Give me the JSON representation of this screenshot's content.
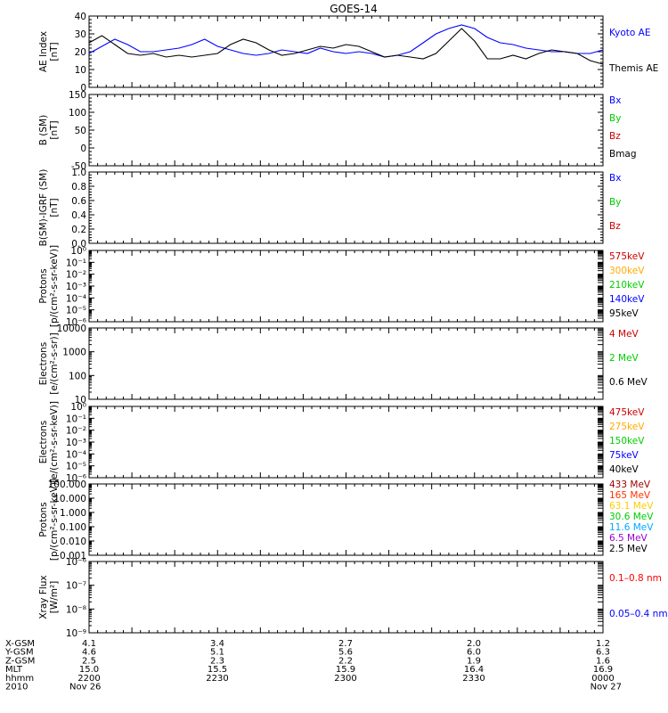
{
  "title": "GOES-14",
  "chart_data": [
    {
      "type": "line",
      "ylabel": "AE Index [nT]",
      "ylim": [
        0,
        40
      ],
      "yticks": [
        "0",
        "10",
        "20",
        "30",
        "40"
      ],
      "legend": [
        {
          "label": "Kyoto AE",
          "color": "#0000ff"
        },
        {
          "label": "Themis AE",
          "color": "#000000"
        }
      ],
      "x_hours": [
        22.0,
        22.05,
        22.1,
        22.15,
        22.2,
        22.25,
        22.3,
        22.35,
        22.4,
        22.45,
        22.5,
        22.55,
        22.6,
        22.65,
        22.7,
        22.75,
        22.8,
        22.85,
        22.9,
        22.95,
        23.0,
        23.05,
        23.1,
        23.15,
        23.2,
        23.25,
        23.3,
        23.35,
        23.4,
        23.45,
        23.5,
        23.55,
        23.6,
        23.65,
        23.7,
        23.75,
        23.8,
        23.85,
        23.9,
        23.95,
        24.0
      ],
      "series": [
        {
          "name": "Kyoto AE",
          "color": "#0000ff",
          "values": [
            19,
            23,
            27,
            24,
            20,
            20,
            21,
            22,
            24,
            27,
            23,
            21,
            19,
            18,
            19,
            21,
            20,
            19,
            22,
            20,
            19,
            20,
            19,
            17,
            18,
            20,
            25,
            30,
            33,
            35,
            33,
            28,
            25,
            24,
            22,
            21,
            20,
            20,
            19,
            19,
            21
          ]
        },
        {
          "name": "Themis AE",
          "color": "#000000",
          "values": [
            25,
            29,
            24,
            19,
            18,
            19,
            17,
            18,
            17,
            18,
            19,
            24,
            27,
            25,
            21,
            18,
            19,
            21,
            23,
            22,
            24,
            23,
            20,
            17,
            18,
            17,
            16,
            19,
            26,
            33,
            26,
            16,
            16,
            18,
            16,
            19,
            21,
            20,
            19,
            15,
            13
          ]
        }
      ]
    },
    {
      "type": "line",
      "ylabel": "B (SM) [nT]",
      "ylim": [
        -50,
        150
      ],
      "yticks": [
        "-50",
        "0",
        "50",
        "100",
        "150"
      ],
      "legend": [
        {
          "label": "Bx",
          "color": "#0000ff"
        },
        {
          "label": "By",
          "color": "#00cc00"
        },
        {
          "label": "Bz",
          "color": "#cc0000"
        },
        {
          "label": "Bmag",
          "color": "#000000"
        }
      ],
      "series": []
    },
    {
      "type": "line",
      "ylabel": "B(SM)-IGRF (SM) [nT]",
      "ylim": [
        0,
        1
      ],
      "yticks": [
        "0.0",
        "0.2",
        "0.4",
        "0.6",
        "0.8",
        "1.0"
      ],
      "legend": [
        {
          "label": "Bx",
          "color": "#0000ff"
        },
        {
          "label": "By",
          "color": "#00cc00"
        },
        {
          "label": "Bz",
          "color": "#cc0000"
        }
      ],
      "series": []
    },
    {
      "type": "line",
      "ylabel": "Protons [p/(cm²-s-sr-keV)]",
      "scale": "log",
      "ylim": [
        1e-06,
        1
      ],
      "yticks": [
        "10⁻⁶",
        "10⁻⁵",
        "10⁻⁴",
        "10⁻³",
        "10⁻²",
        "10⁻¹",
        "10⁰"
      ],
      "legend": [
        {
          "label": "575keV",
          "color": "#cc0000"
        },
        {
          "label": "300keV",
          "color": "#ffaa00"
        },
        {
          "label": "210keV",
          "color": "#00cc00"
        },
        {
          "label": "140keV",
          "color": "#0000ff"
        },
        {
          "label": "95keV",
          "color": "#000000"
        }
      ],
      "series": []
    },
    {
      "type": "line",
      "ylabel": "Electrons [e/(cm²-s-sr)]",
      "scale": "log",
      "ylim": [
        10,
        10000
      ],
      "yticks": [
        "10",
        "100",
        "1000",
        "10000"
      ],
      "legend": [
        {
          "label": "4 MeV",
          "color": "#cc0000"
        },
        {
          "label": "2 MeV",
          "color": "#00cc00"
        },
        {
          "label": "0.6 MeV",
          "color": "#000000"
        }
      ],
      "series": []
    },
    {
      "type": "line",
      "ylabel": "Electrons [e/(cm²-s-sr-keV)]",
      "scale": "log",
      "ylim": [
        1e-06,
        1
      ],
      "yticks": [
        "10⁻⁶",
        "10⁻⁵",
        "10⁻⁴",
        "10⁻³",
        "10⁻²",
        "10⁻¹",
        "10⁰"
      ],
      "legend": [
        {
          "label": "475keV",
          "color": "#cc0000"
        },
        {
          "label": "275keV",
          "color": "#ffaa00"
        },
        {
          "label": "150keV",
          "color": "#00cc00"
        },
        {
          "label": "75keV",
          "color": "#0000ff"
        },
        {
          "label": "40keV",
          "color": "#000000"
        }
      ],
      "series": []
    },
    {
      "type": "line",
      "ylabel": "Protons [p/(cm²-s-sr-keV)]",
      "scale": "log",
      "ylim": [
        0.001,
        100
      ],
      "yticks": [
        "0.001",
        "0.010",
        "0.100",
        "1.000",
        "10.000",
        "100.000"
      ],
      "legend": [
        {
          "label": "433 MeV",
          "color": "#990000"
        },
        {
          "label": "165 MeV",
          "color": "#ff3300"
        },
        {
          "label": "63.1 MeV",
          "color": "#ffcc00"
        },
        {
          "label": "30.6 MeV",
          "color": "#00cc00"
        },
        {
          "label": "11.6 MeV",
          "color": "#00aaff"
        },
        {
          "label": "6.5 MeV",
          "color": "#9900cc"
        },
        {
          "label": "2.5 MeV",
          "color": "#000000"
        }
      ],
      "series": []
    },
    {
      "type": "line",
      "ylabel": "Xray Flux [W/m²]",
      "scale": "log",
      "ylim": [
        1e-09,
        1e-06
      ],
      "yticks": [
        "10⁻⁹",
        "10⁻⁸",
        "10⁻⁷",
        "10⁻⁶"
      ],
      "legend": [
        {
          "label": "0.1–0.8 nm",
          "color": "#ff0000"
        },
        {
          "label": "0.05–0.4 nm",
          "color": "#0000ff"
        }
      ],
      "series": []
    }
  ],
  "ephemeris": {
    "rows": [
      {
        "label": "X-GSM",
        "values": [
          "4.1",
          "3.4",
          "2.7",
          "2.0",
          "1.2"
        ]
      },
      {
        "label": "Y-GSM",
        "values": [
          "4.6",
          "5.1",
          "5.6",
          "6.0",
          "6.3"
        ]
      },
      {
        "label": "Z-GSM",
        "values": [
          "2.5",
          "2.3",
          "2.2",
          "1.9",
          "1.6"
        ]
      },
      {
        "label": "MLT",
        "values": [
          "15.0",
          "15.5",
          "15.9",
          "16.4",
          "16.9"
        ]
      },
      {
        "label": "hhmm",
        "values": [
          "2200",
          "2230",
          "2300",
          "2330",
          "0000"
        ]
      },
      {
        "label": "2010",
        "values": [
          "Nov 26",
          "",
          "",
          "",
          "Nov 27"
        ]
      }
    ]
  }
}
